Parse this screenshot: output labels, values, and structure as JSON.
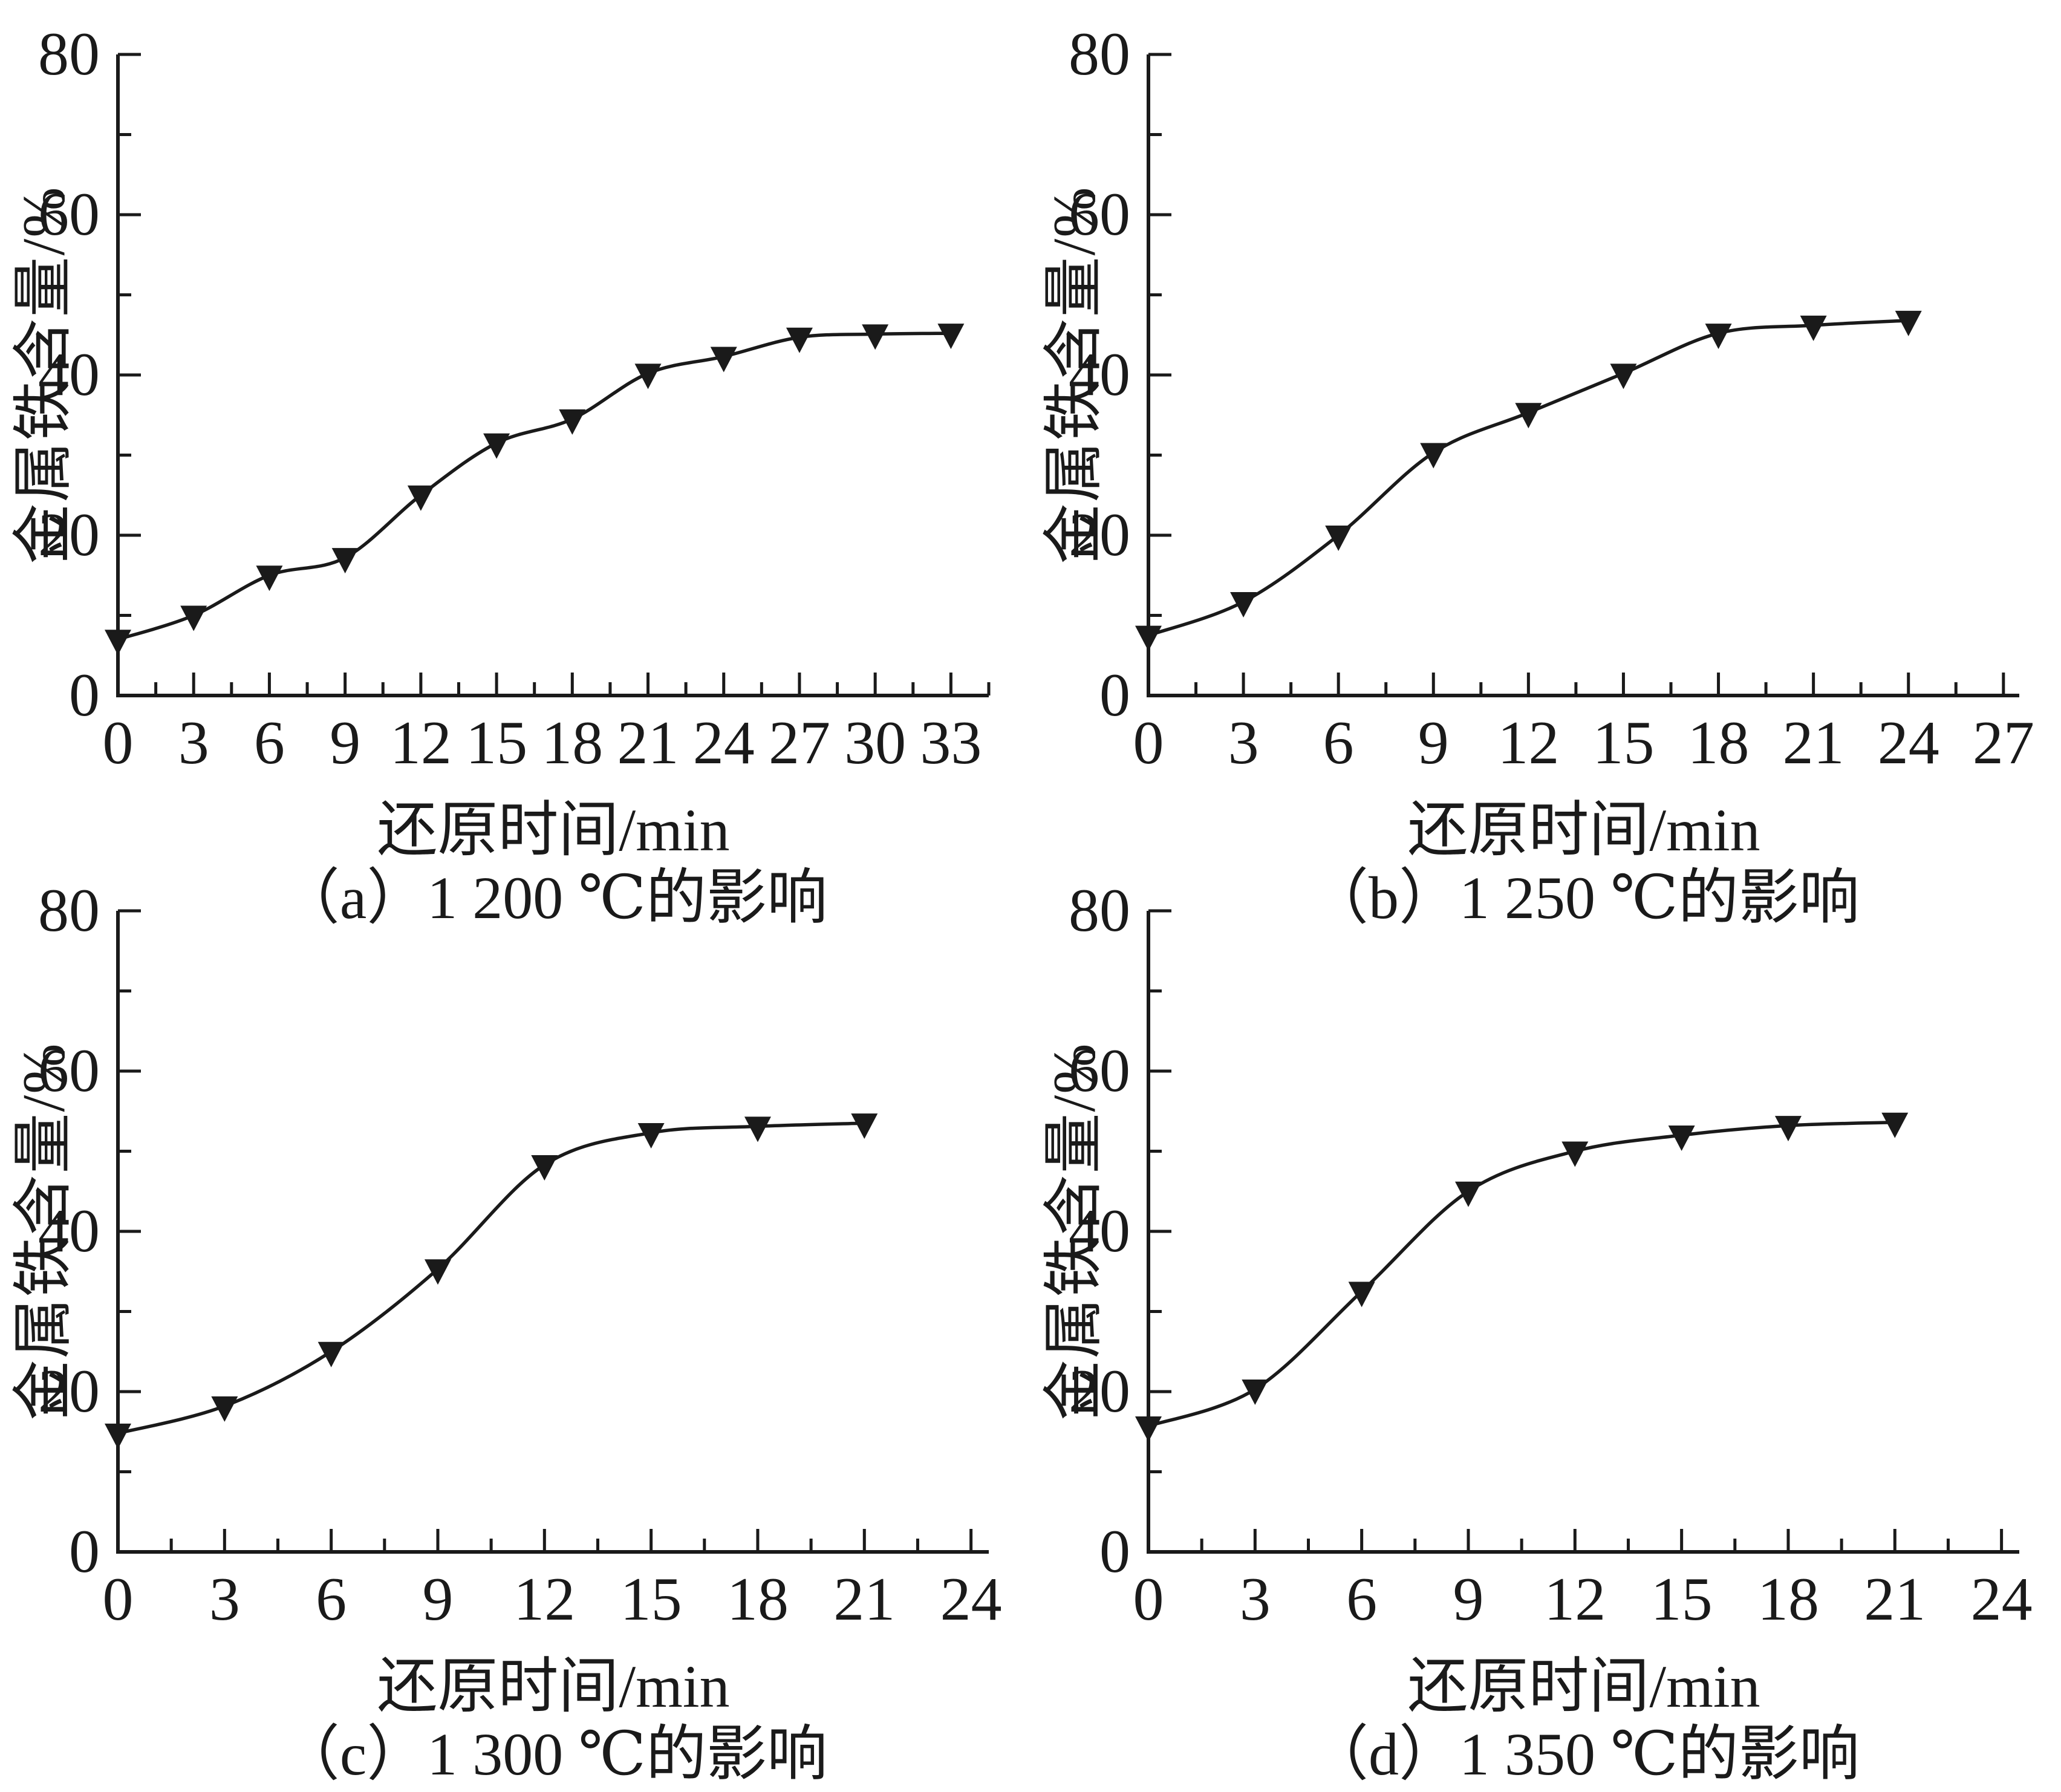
{
  "page": {
    "background": "#ffffff",
    "text_color": "#1a1a1a"
  },
  "chart_data": [
    {
      "type": "line",
      "panel": "a",
      "caption": "（a）1 200 ℃的影响",
      "xlabel": "还原时间/min",
      "ylabel": "金属铁含量/%",
      "x": [
        0,
        3,
        6,
        9,
        12,
        15,
        18,
        21,
        24,
        27,
        30,
        33
      ],
      "y": [
        7,
        10,
        15,
        17.2,
        25,
        31.5,
        34.5,
        40.2,
        42.3,
        44.7,
        45.1,
        45.2
      ],
      "xlim": [
        0,
        34.5
      ],
      "ylim": [
        0,
        80
      ],
      "xticks": [
        0,
        3,
        6,
        9,
        12,
        15,
        18,
        21,
        24,
        27,
        30,
        33
      ],
      "xtick_minor_step": 1.5,
      "yticks": [
        0,
        20,
        40,
        60,
        80
      ],
      "yticks_minor": [
        10,
        30,
        50,
        70
      ],
      "marker": "triangle-down",
      "line_color": "#1a1a1a",
      "grid": "off",
      "legend": "none"
    },
    {
      "type": "line",
      "panel": "b",
      "caption": "（b）1 250 ℃的影响",
      "xlabel": "还原时间/min",
      "ylabel": "金属铁含量/%",
      "x": [
        0,
        3,
        6,
        9,
        12,
        15,
        18,
        21,
        24
      ],
      "y": [
        7.5,
        11.7,
        20,
        30.3,
        35.3,
        40.2,
        45.2,
        46.2,
        46.8
      ],
      "xlim": [
        0,
        27.5
      ],
      "ylim": [
        0,
        80
      ],
      "xticks": [
        0,
        3,
        6,
        9,
        12,
        15,
        18,
        21,
        24,
        27
      ],
      "xtick_minor_step": 1.5,
      "yticks": [
        0,
        20,
        40,
        60,
        80
      ],
      "yticks_minor": [
        10,
        30,
        50,
        70
      ],
      "marker": "triangle-down",
      "line_color": "#1a1a1a",
      "grid": "off",
      "legend": "none"
    },
    {
      "type": "line",
      "panel": "c",
      "caption": "（c）1 300 ℃的影响",
      "xlabel": "还原时间/min",
      "ylabel": "金属铁含量/%",
      "x": [
        0,
        3,
        6,
        9,
        12,
        15,
        18,
        21
      ],
      "y": [
        14.8,
        18.2,
        25,
        35.3,
        48.3,
        52.3,
        53.1,
        53.5
      ],
      "xlim": [
        0,
        24.5
      ],
      "ylim": [
        0,
        80
      ],
      "xticks": [
        0,
        3,
        6,
        9,
        12,
        15,
        18,
        21,
        24
      ],
      "xtick_minor_step": 1.5,
      "yticks": [
        0,
        20,
        40,
        60,
        80
      ],
      "yticks_minor": [
        10,
        30,
        50,
        70
      ],
      "marker": "triangle-down",
      "line_color": "#1a1a1a",
      "grid": "off",
      "legend": "none"
    },
    {
      "type": "line",
      "panel": "d",
      "caption": "（d）1 350 ℃的影响",
      "xlabel": "还原时间/min",
      "ylabel": "金属铁含量/%",
      "x": [
        0,
        3,
        6,
        9,
        12,
        15,
        18,
        21
      ],
      "y": [
        15.7,
        20.3,
        32.5,
        45,
        50,
        52,
        53.2,
        53.6
      ],
      "xlim": [
        0,
        24.5
      ],
      "ylim": [
        0,
        80
      ],
      "xticks": [
        0,
        3,
        6,
        9,
        12,
        15,
        18,
        21,
        24
      ],
      "xtick_minor_step": 1.5,
      "yticks": [
        0,
        20,
        40,
        60,
        80
      ],
      "yticks_minor": [
        10,
        30,
        50,
        70
      ],
      "marker": "triangle-down",
      "line_color": "#1a1a1a",
      "grid": "off",
      "legend": "none"
    }
  ]
}
